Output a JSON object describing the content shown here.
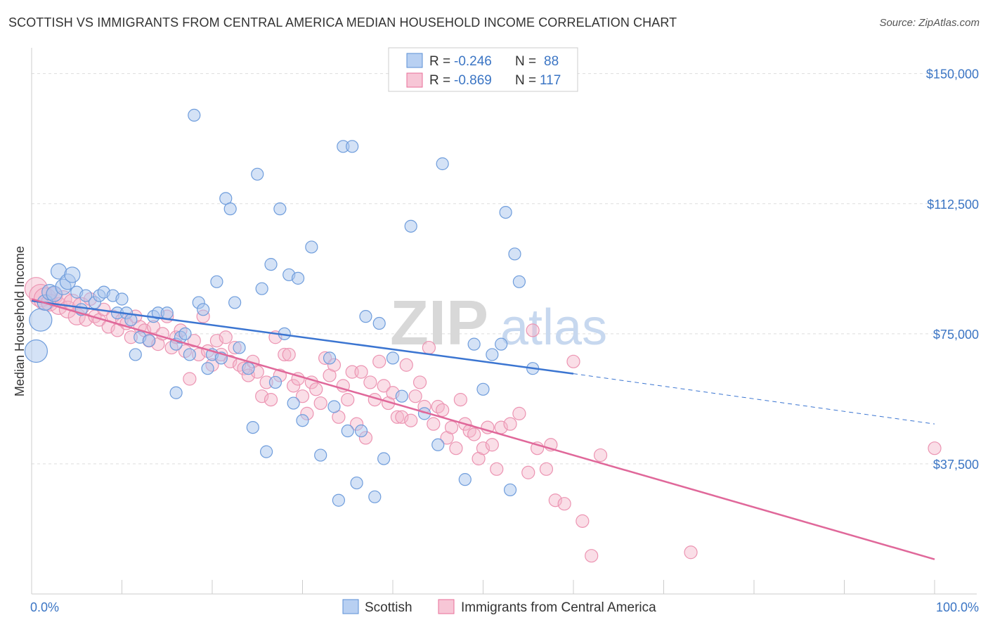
{
  "title": "SCOTTISH VS IMMIGRANTS FROM CENTRAL AMERICA MEDIAN HOUSEHOLD INCOME CORRELATION CHART",
  "source": "Source: ZipAtlas.com",
  "watermark": {
    "zip": "ZIP",
    "atlas": "atlas"
  },
  "colors": {
    "blue": "#5b8fd6",
    "blue_fill": "#a9c6ee",
    "pink": "#e86f98",
    "pink_fill": "#f5b5ca",
    "tick_text": "#3b75c4",
    "grid": "#dddddd"
  },
  "legend": {
    "rows": [
      {
        "r_label": "R = ",
        "r_value": "-0.246",
        "n_label": "N = ",
        "n_value": "88"
      },
      {
        "r_label": "R = ",
        "r_value": "-0.869",
        "n_label": "N = ",
        "n_value": "117"
      }
    ]
  },
  "chart_data": {
    "type": "scatter",
    "title": "SCOTTISH VS IMMIGRANTS FROM CENTRAL AMERICA MEDIAN HOUSEHOLD INCOME CORRELATION CHART",
    "xlabel": "",
    "ylabel": "Median Household Income",
    "xlim": [
      0,
      100
    ],
    "ylim": [
      0,
      155000
    ],
    "x_tick_labels": [
      "0.0%",
      "100.0%"
    ],
    "y_ticks": [
      37500,
      75000,
      112500,
      150000
    ],
    "y_tick_labels": [
      "$37,500",
      "$75,000",
      "$112,500",
      "$150,000"
    ],
    "grid": true,
    "legend_position": "top-center",
    "series": [
      {
        "name": "Scottish",
        "color": "#5b8fd6",
        "trend": {
          "x": [
            0,
            60,
            100
          ],
          "y": [
            84500,
            63500,
            49000
          ],
          "solid_until": 60
        },
        "points": [
          [
            0.5,
            70000
          ],
          [
            1,
            79000
          ],
          [
            1.5,
            84000
          ],
          [
            2,
            87000
          ],
          [
            2.5,
            86500
          ],
          [
            3,
            93000
          ],
          [
            3.5,
            88500
          ],
          [
            4,
            90000
          ],
          [
            4.5,
            92000
          ],
          [
            5,
            87000
          ],
          [
            5.5,
            82000
          ],
          [
            6,
            86000
          ],
          [
            7,
            84000
          ],
          [
            7.5,
            86000
          ],
          [
            8,
            87000
          ],
          [
            9,
            86000
          ],
          [
            9.5,
            81000
          ],
          [
            10,
            85000
          ],
          [
            10.5,
            81000
          ],
          [
            11,
            79000
          ],
          [
            11.5,
            69000
          ],
          [
            12,
            74000
          ],
          [
            13,
            73000
          ],
          [
            13.5,
            80000
          ],
          [
            14,
            81000
          ],
          [
            15,
            81000
          ],
          [
            16,
            72000
          ],
          [
            16.5,
            74000
          ],
          [
            17,
            75000
          ],
          [
            16,
            58000
          ],
          [
            17.5,
            69000
          ],
          [
            18,
            138000
          ],
          [
            18.5,
            84000
          ],
          [
            19,
            82000
          ],
          [
            19.5,
            65000
          ],
          [
            20,
            69000
          ],
          [
            20.5,
            90000
          ],
          [
            21,
            68000
          ],
          [
            21.5,
            114000
          ],
          [
            22,
            111000
          ],
          [
            22.5,
            84000
          ],
          [
            23,
            71000
          ],
          [
            24,
            65000
          ],
          [
            24.5,
            48000
          ],
          [
            25,
            121000
          ],
          [
            25.5,
            88000
          ],
          [
            26,
            41000
          ],
          [
            26.5,
            95000
          ],
          [
            27,
            61000
          ],
          [
            27.5,
            111000
          ],
          [
            28,
            75000
          ],
          [
            28.5,
            92000
          ],
          [
            29,
            55000
          ],
          [
            29.5,
            91000
          ],
          [
            30,
            50000
          ],
          [
            31,
            100000
          ],
          [
            32,
            40000
          ],
          [
            33,
            68000
          ],
          [
            33.5,
            54000
          ],
          [
            34,
            27000
          ],
          [
            34.5,
            129000
          ],
          [
            35,
            47000
          ],
          [
            35.5,
            129000
          ],
          [
            36,
            32000
          ],
          [
            36.5,
            47000
          ],
          [
            37,
            80000
          ],
          [
            38,
            28000
          ],
          [
            38.5,
            78000
          ],
          [
            39,
            39000
          ],
          [
            40,
            68000
          ],
          [
            41,
            57000
          ],
          [
            42,
            106000
          ],
          [
            43.5,
            52000
          ],
          [
            45,
            43000
          ],
          [
            45.5,
            124000
          ],
          [
            48,
            33000
          ],
          [
            49,
            72000
          ],
          [
            50,
            59000
          ],
          [
            51,
            69000
          ],
          [
            52,
            72000
          ],
          [
            52.5,
            110000
          ],
          [
            53,
            30000
          ],
          [
            53.5,
            98000
          ],
          [
            54,
            90000
          ],
          [
            55.5,
            65000
          ]
        ]
      },
      {
        "name": "Immigrants from Central America",
        "color": "#e86f98",
        "trend": {
          "x": [
            0,
            100
          ],
          "y": [
            85000,
            10000
          ]
        },
        "points": [
          [
            0.5,
            88000
          ],
          [
            1,
            86000
          ],
          [
            1.5,
            85000
          ],
          [
            2,
            84000
          ],
          [
            2.5,
            86000
          ],
          [
            3,
            83000
          ],
          [
            3.5,
            85000
          ],
          [
            4,
            82000
          ],
          [
            4.5,
            84000
          ],
          [
            5,
            80000
          ],
          [
            5.5,
            83000
          ],
          [
            6,
            79000
          ],
          [
            6.5,
            85000
          ],
          [
            7,
            80000
          ],
          [
            7.5,
            79000
          ],
          [
            8,
            82000
          ],
          [
            8.5,
            77000
          ],
          [
            9,
            80000
          ],
          [
            9.5,
            76000
          ],
          [
            10,
            79000
          ],
          [
            10.5,
            78000
          ],
          [
            11,
            74000
          ],
          [
            11.5,
            80000
          ],
          [
            12,
            77000
          ],
          [
            12.5,
            76000
          ],
          [
            13,
            73000
          ],
          [
            13.5,
            77000
          ],
          [
            14,
            72000
          ],
          [
            14.5,
            75000
          ],
          [
            15,
            80000
          ],
          [
            15.5,
            71000
          ],
          [
            16,
            74000
          ],
          [
            16.5,
            76000
          ],
          [
            17,
            70000
          ],
          [
            17.5,
            62000
          ],
          [
            18,
            73000
          ],
          [
            18.5,
            69000
          ],
          [
            19,
            80000
          ],
          [
            19.5,
            70000
          ],
          [
            20,
            66000
          ],
          [
            20.5,
            73000
          ],
          [
            21,
            69000
          ],
          [
            21.5,
            74000
          ],
          [
            22,
            67000
          ],
          [
            22.5,
            71000
          ],
          [
            23,
            66000
          ],
          [
            23.5,
            65000
          ],
          [
            24,
            63000
          ],
          [
            24.5,
            67000
          ],
          [
            25,
            64000
          ],
          [
            25.5,
            57000
          ],
          [
            26,
            61000
          ],
          [
            26.5,
            56000
          ],
          [
            27,
            74000
          ],
          [
            27.5,
            63000
          ],
          [
            28,
            69000
          ],
          [
            28.5,
            69000
          ],
          [
            29,
            60000
          ],
          [
            29.5,
            62000
          ],
          [
            30,
            57000
          ],
          [
            30.5,
            52000
          ],
          [
            31,
            61000
          ],
          [
            31.5,
            59000
          ],
          [
            32,
            55000
          ],
          [
            32.5,
            68000
          ],
          [
            33,
            63000
          ],
          [
            33.5,
            66000
          ],
          [
            34,
            51000
          ],
          [
            34.5,
            60000
          ],
          [
            35,
            56000
          ],
          [
            35.5,
            64000
          ],
          [
            36,
            49000
          ],
          [
            36.5,
            64000
          ],
          [
            37,
            45000
          ],
          [
            37.5,
            61000
          ],
          [
            38,
            56000
          ],
          [
            38.5,
            67000
          ],
          [
            39,
            60000
          ],
          [
            39.5,
            55000
          ],
          [
            40,
            58000
          ],
          [
            40.5,
            51000
          ],
          [
            41,
            51000
          ],
          [
            41.5,
            66000
          ],
          [
            42,
            50000
          ],
          [
            42.5,
            57000
          ],
          [
            43,
            61000
          ],
          [
            43.5,
            54000
          ],
          [
            44,
            71000
          ],
          [
            44.5,
            49000
          ],
          [
            45,
            54000
          ],
          [
            45.5,
            53000
          ],
          [
            46,
            45000
          ],
          [
            46.5,
            48000
          ],
          [
            47,
            42000
          ],
          [
            47.5,
            56000
          ],
          [
            48,
            49000
          ],
          [
            48.5,
            47000
          ],
          [
            49,
            46000
          ],
          [
            49.5,
            39000
          ],
          [
            50,
            42000
          ],
          [
            50.5,
            48000
          ],
          [
            51,
            43000
          ],
          [
            51.5,
            36000
          ],
          [
            52,
            48000
          ],
          [
            53,
            49000
          ],
          [
            54,
            52000
          ],
          [
            55,
            35000
          ],
          [
            55.5,
            76000
          ],
          [
            56,
            42000
          ],
          [
            57,
            36000
          ],
          [
            57.5,
            43000
          ],
          [
            58,
            27000
          ],
          [
            59,
            26000
          ],
          [
            60,
            67000
          ],
          [
            61,
            21000
          ],
          [
            62,
            11000
          ],
          [
            63,
            40000
          ],
          [
            73,
            12000
          ],
          [
            100,
            42000
          ]
        ]
      }
    ]
  },
  "bottom_legend": [
    {
      "label": "Scottish"
    },
    {
      "label": "Immigrants from Central America"
    }
  ]
}
